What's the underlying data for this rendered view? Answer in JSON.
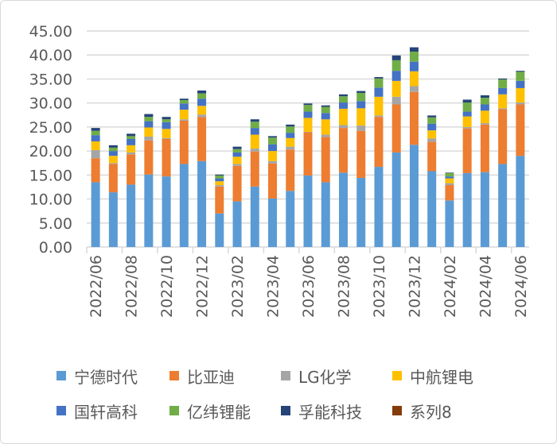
{
  "chart_data": {
    "type": "bar",
    "stacked": true,
    "categories": [
      "2022/06",
      "2022/07",
      "2022/08",
      "2022/09",
      "2022/10",
      "2022/11",
      "2022/12",
      "2023/01",
      "2023/02",
      "2023/03",
      "2023/04",
      "2023/05",
      "2023/06",
      "2023/07",
      "2023/08",
      "2023/09",
      "2023/10",
      "2023/11",
      "2023/12",
      "2024/01",
      "2024/02",
      "2024/03",
      "2024/04",
      "2024/05",
      "2024/06"
    ],
    "x_tick_labels": [
      "2022/06",
      "2022/08",
      "2022/10",
      "2022/12",
      "2023/02",
      "2023/04",
      "2023/06",
      "2023/08",
      "2023/10",
      "2023/12",
      "2024/02",
      "2024/04",
      "2024/06"
    ],
    "ylim": [
      0,
      45
    ],
    "y_ticks": [
      "0.00",
      "5.00",
      "10.00",
      "15.00",
      "20.00",
      "25.00",
      "30.00",
      "35.00",
      "40.00",
      "45.00"
    ],
    "grid": true,
    "legend_position": "bottom",
    "series": [
      {
        "name": "宁德时代",
        "color": "#5B9BD5",
        "values": [
          13.5,
          11.4,
          13.0,
          15.1,
          14.7,
          17.3,
          17.9,
          7.0,
          9.5,
          12.6,
          10.1,
          11.7,
          14.9,
          13.5,
          15.5,
          14.4,
          16.7,
          19.7,
          21.3,
          15.8,
          9.7,
          15.4,
          15.6,
          17.3,
          19.0
        ]
      },
      {
        "name": "比亚迪",
        "color": "#ED7D31",
        "values": [
          5.0,
          5.9,
          6.3,
          7.1,
          7.8,
          9.0,
          9.2,
          5.6,
          7.4,
          7.3,
          7.3,
          8.6,
          9.0,
          9.4,
          9.3,
          9.8,
          10.4,
          10.0,
          11.0,
          6.1,
          3.2,
          9.3,
          9.9,
          11.4,
          10.7
        ]
      },
      {
        "name": "LG化学",
        "color": "#A5A5A5",
        "values": [
          1.7,
          0.2,
          0.4,
          0.8,
          0.2,
          0.3,
          0.5,
          0.3,
          0.4,
          0.6,
          0.5,
          0.6,
          0.1,
          0.5,
          0.6,
          1.1,
          0.3,
          1.6,
          1.2,
          0.7,
          0.4,
          0.3,
          0.3,
          0.2,
          0.4
        ]
      },
      {
        "name": "中航锂电",
        "color": "#FFC000",
        "values": [
          1.8,
          1.5,
          1.5,
          1.9,
          1.9,
          2.0,
          1.8,
          0.8,
          1.5,
          2.9,
          2.1,
          1.8,
          2.9,
          3.2,
          3.4,
          3.6,
          3.9,
          3.3,
          3.1,
          1.7,
          1.0,
          2.2,
          2.6,
          2.9,
          3.0
        ]
      },
      {
        "name": "国轩高科",
        "color": "#4472C4",
        "values": [
          1.3,
          1.0,
          1.3,
          1.3,
          1.4,
          1.3,
          1.5,
          0.6,
          0.9,
          1.4,
          1.4,
          1.1,
          1.3,
          1.3,
          1.3,
          1.5,
          1.9,
          2.1,
          2.0,
          1.4,
          0.4,
          1.0,
          1.3,
          1.3,
          1.5
        ]
      },
      {
        "name": "亿纬锂能",
        "color": "#70AD47",
        "values": [
          0.9,
          0.7,
          0.6,
          0.9,
          0.6,
          0.7,
          1.1,
          0.6,
          0.7,
          1.3,
          1.4,
          1.3,
          1.4,
          1.3,
          1.3,
          1.7,
          1.9,
          2.2,
          2.1,
          1.3,
          0.7,
          1.9,
          1.4,
          1.8,
          1.9
        ]
      },
      {
        "name": "孚能科技",
        "color": "#264478",
        "values": [
          0.6,
          0.5,
          0.5,
          0.6,
          0.5,
          0.3,
          0.6,
          0.2,
          0.5,
          0.5,
          0.3,
          0.4,
          0.3,
          0.3,
          0.4,
          0.4,
          0.3,
          1.0,
          0.9,
          0.4,
          0.1,
          0.6,
          0.5,
          0.2,
          0.2
        ]
      },
      {
        "name": "系列8",
        "color": "#843C0C",
        "values": [
          0,
          0,
          0,
          0,
          0,
          0,
          0,
          0,
          0,
          0,
          0,
          0,
          0,
          0,
          0,
          0,
          0,
          0,
          0,
          0,
          0,
          0,
          0,
          0,
          0
        ]
      }
    ]
  }
}
